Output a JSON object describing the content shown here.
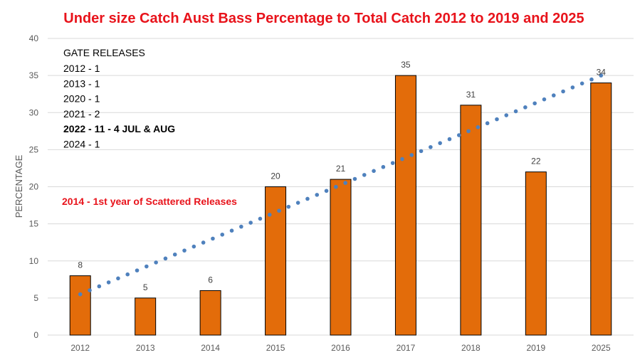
{
  "chart_data": {
    "type": "bar",
    "title": "Under size Catch Aust Bass Percentage to Total Catch 2012 to 2019 and 2025",
    "ylabel": "PERCENTAGE",
    "xlabel": "",
    "categories": [
      "2012",
      "2013",
      "2014",
      "2015",
      "2016",
      "2017",
      "2018",
      "2019",
      "2025"
    ],
    "values": [
      8,
      5,
      6,
      20,
      21,
      35,
      31,
      22,
      34
    ],
    "ylim": [
      0,
      40
    ],
    "yticks": [
      0,
      5,
      10,
      15,
      20,
      25,
      30,
      35,
      40
    ],
    "grid": true,
    "trendline": {
      "type": "linear",
      "style": "dotted",
      "start": 5.5,
      "end": 35
    },
    "annotations": {
      "gate_releases_title": "GATE RELEASES",
      "gate_releases": [
        {
          "text": "2012 - 1",
          "bold": false
        },
        {
          "text": "2013 - 1",
          "bold": false
        },
        {
          "text": "2020 - 1",
          "bold": false
        },
        {
          "text": "2021 - 2",
          "bold": false
        },
        {
          "text": "2022 - 11 - 4 JUL & AUG",
          "bold": true
        },
        {
          "text": "2024 - 1",
          "bold": false
        }
      ],
      "scattered_note": "2014 - 1st year of Scattered Releases"
    },
    "colors": {
      "title": "#E8131B",
      "bar_fill": "#E36C0A",
      "bar_stroke": "#000000",
      "trend": "#4F81BD",
      "grid": "#D9D9D9",
      "note_red": "#E8131B"
    }
  }
}
